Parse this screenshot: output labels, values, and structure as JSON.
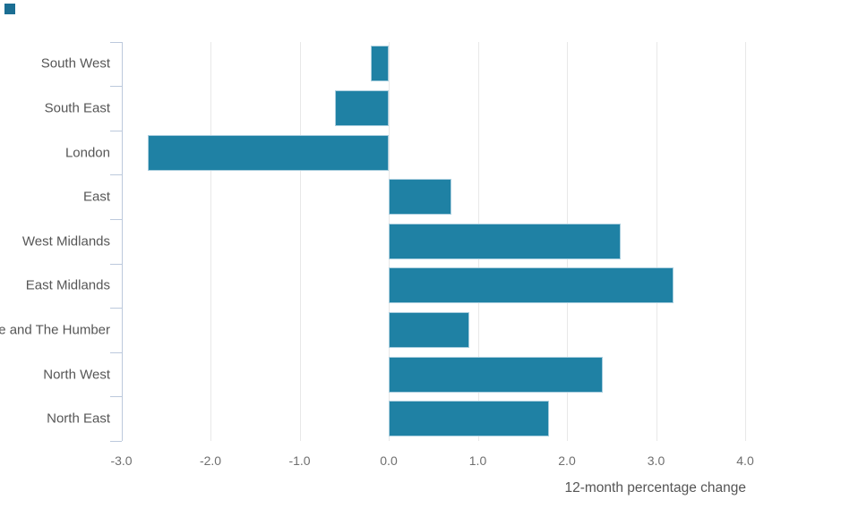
{
  "decoration": {
    "fragment_color": "#1b6e93"
  },
  "chart_data": {
    "type": "bar",
    "orientation": "horizontal",
    "title": "",
    "xlabel": "12-month percentage change",
    "ylabel": "",
    "categories": [
      "South West",
      "South East",
      "London",
      "East",
      "West Midlands",
      "East Midlands",
      "Yorkshire and The Humber",
      "North West",
      "North East"
    ],
    "values": [
      -0.2,
      -0.6,
      -2.7,
      0.7,
      2.6,
      3.2,
      0.9,
      2.4,
      1.8
    ],
    "xlim": [
      -3.0,
      4.0
    ],
    "xticks": [
      -3,
      -2,
      -1,
      0,
      1,
      2,
      3,
      4
    ],
    "xtick_labels": [
      "-3.0",
      "-2.0",
      "-1.0",
      "0.0",
      "1.0",
      "2.0",
      "3.0",
      "4.0"
    ],
    "grid": "vertical-only",
    "legend": "none",
    "colors": {
      "bar": "#1f81a4",
      "bar_border": "#a9cede",
      "axis": "#bcc9dc",
      "grid": "#e8e8e8",
      "tick_text": "#6f6f6f",
      "category_text": "#565656",
      "axis_title_text": "#555555"
    }
  }
}
